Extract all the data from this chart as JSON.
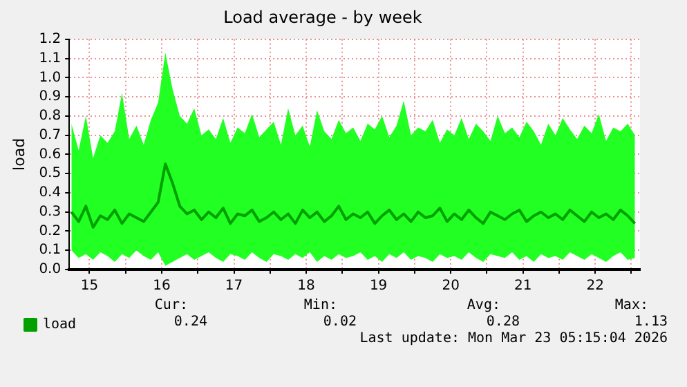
{
  "chart_data": {
    "type": "line",
    "title": "Load average - by week",
    "ylabel": "load",
    "x": [
      15.25,
      15.35,
      15.45,
      15.55,
      15.65,
      15.75,
      15.85,
      15.95,
      16.05,
      16.15,
      16.25,
      16.35,
      16.45,
      16.55,
      16.65,
      16.75,
      16.85,
      16.95,
      17.05,
      17.15,
      17.25,
      17.35,
      17.45,
      17.55,
      17.65,
      17.75,
      17.85,
      17.95,
      18.05,
      18.15,
      18.25,
      18.35,
      18.45,
      18.55,
      18.65,
      18.75,
      18.85,
      18.95,
      19.05,
      19.15,
      19.25,
      19.35,
      19.45,
      19.55,
      19.65,
      19.75,
      19.85,
      19.95,
      20.05,
      20.15,
      20.25,
      20.35,
      20.45,
      20.55,
      20.65,
      20.75,
      20.85,
      20.95,
      21.05,
      21.15,
      21.25,
      21.35,
      21.45,
      21.55,
      21.65,
      21.75,
      21.85,
      21.95,
      22.05,
      22.15,
      22.25,
      22.35,
      22.45,
      22.55,
      22.65,
      22.75,
      22.85,
      22.95,
      23.05
    ],
    "series": [
      {
        "name": "load",
        "color": "#00a000",
        "values": [
          0.3,
          0.25,
          0.33,
          0.22,
          0.28,
          0.26,
          0.31,
          0.24,
          0.29,
          0.27,
          0.25,
          0.3,
          0.35,
          0.55,
          0.45,
          0.33,
          0.29,
          0.31,
          0.26,
          0.3,
          0.27,
          0.32,
          0.24,
          0.29,
          0.28,
          0.31,
          0.25,
          0.27,
          0.3,
          0.26,
          0.29,
          0.24,
          0.31,
          0.27,
          0.3,
          0.25,
          0.28,
          0.33,
          0.26,
          0.29,
          0.27,
          0.3,
          0.24,
          0.28,
          0.31,
          0.26,
          0.29,
          0.25,
          0.3,
          0.27,
          0.28,
          0.32,
          0.25,
          0.29,
          0.26,
          0.31,
          0.27,
          0.24,
          0.3,
          0.28,
          0.26,
          0.29,
          0.31,
          0.25,
          0.28,
          0.3,
          0.27,
          0.29,
          0.26,
          0.31,
          0.28,
          0.25,
          0.3,
          0.27,
          0.29,
          0.26,
          0.31,
          0.28,
          0.24
        ],
        "upper": [
          0.76,
          0.62,
          0.8,
          0.58,
          0.7,
          0.66,
          0.72,
          0.92,
          0.68,
          0.75,
          0.65,
          0.78,
          0.87,
          1.13,
          0.94,
          0.8,
          0.76,
          0.84,
          0.7,
          0.73,
          0.68,
          0.79,
          0.66,
          0.74,
          0.71,
          0.81,
          0.69,
          0.73,
          0.77,
          0.65,
          0.84,
          0.7,
          0.75,
          0.64,
          0.83,
          0.72,
          0.68,
          0.78,
          0.71,
          0.74,
          0.67,
          0.76,
          0.73,
          0.8,
          0.69,
          0.75,
          0.88,
          0.7,
          0.74,
          0.72,
          0.78,
          0.66,
          0.73,
          0.7,
          0.79,
          0.68,
          0.76,
          0.72,
          0.67,
          0.8,
          0.71,
          0.74,
          0.69,
          0.77,
          0.72,
          0.65,
          0.76,
          0.7,
          0.79,
          0.73,
          0.68,
          0.75,
          0.71,
          0.81,
          0.67,
          0.74,
          0.72,
          0.76,
          0.7
        ],
        "lower": [
          0.1,
          0.06,
          0.08,
          0.05,
          0.09,
          0.07,
          0.04,
          0.08,
          0.06,
          0.1,
          0.07,
          0.05,
          0.09,
          0.02,
          0.04,
          0.06,
          0.08,
          0.05,
          0.07,
          0.09,
          0.06,
          0.04,
          0.08,
          0.07,
          0.05,
          0.09,
          0.06,
          0.04,
          0.08,
          0.07,
          0.05,
          0.08,
          0.06,
          0.09,
          0.04,
          0.07,
          0.05,
          0.08,
          0.06,
          0.07,
          0.09,
          0.05,
          0.07,
          0.04,
          0.08,
          0.06,
          0.09,
          0.05,
          0.07,
          0.06,
          0.04,
          0.08,
          0.06,
          0.07,
          0.05,
          0.09,
          0.06,
          0.04,
          0.08,
          0.07,
          0.06,
          0.09,
          0.05,
          0.07,
          0.04,
          0.08,
          0.06,
          0.07,
          0.05,
          0.09,
          0.07,
          0.05,
          0.08,
          0.06,
          0.04,
          0.07,
          0.09,
          0.05,
          0.06
        ]
      }
    ],
    "xlim": [
      15.22,
      23.12
    ],
    "xticks": [
      {
        "value": 15.5,
        "label": "15"
      },
      {
        "value": 16,
        "label": null
      },
      {
        "value": 16.5,
        "label": "16"
      },
      {
        "value": 17,
        "label": null
      },
      {
        "value": 17.5,
        "label": "17"
      },
      {
        "value": 18,
        "label": null
      },
      {
        "value": 18.5,
        "label": "18"
      },
      {
        "value": 19,
        "label": null
      },
      {
        "value": 19.5,
        "label": "19"
      },
      {
        "value": 20,
        "label": null
      },
      {
        "value": 20.5,
        "label": "20"
      },
      {
        "value": 21,
        "label": null
      },
      {
        "value": 21.5,
        "label": "21"
      },
      {
        "value": 22,
        "label": null
      },
      {
        "value": 22.5,
        "label": "22"
      },
      {
        "value": 23,
        "label": null
      }
    ],
    "ylim": [
      0,
      1.2
    ],
    "yticks": [
      {
        "value": 0,
        "label": "0.0"
      },
      0.1,
      0.2,
      0.3,
      0.4,
      0.5,
      0.6,
      0.7,
      0.8,
      0.9,
      {
        "value": 1,
        "label": "1.0"
      },
      1.1,
      1.2
    ],
    "grid": true,
    "legend": "bottom",
    "marker": "none",
    "line_style": "solid",
    "annotations": [
      "Cur:",
      "0.24",
      "Min:",
      "0.02",
      "Avg:",
      "0.28",
      "Max:",
      "1.13",
      "Last update: Mon Mar 23 05:15:04 2026"
    ]
  }
}
